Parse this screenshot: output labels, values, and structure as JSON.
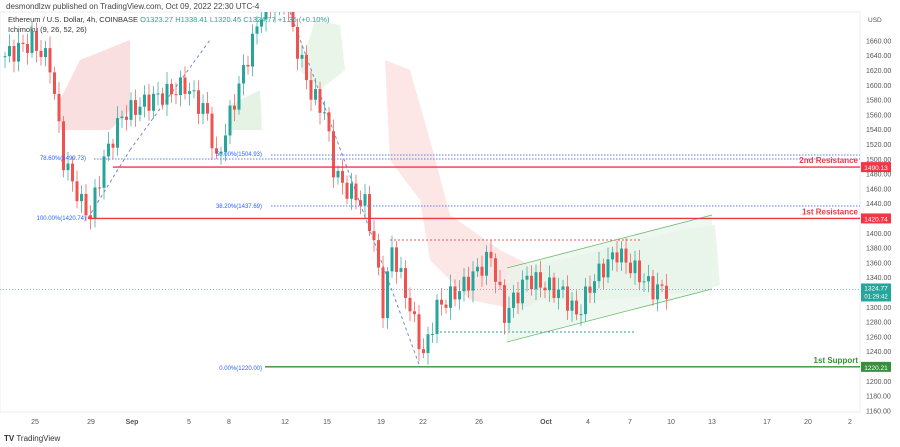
{
  "header": {
    "published": "desmondlzw published on TradingView.com, Oct 09, 2022 22:30 UTC-4"
  },
  "legend": {
    "symbol": "Ethereum / U.S. Dollar, 4h, COINBASE",
    "o": "O1323.27",
    "h": "H1338.41",
    "l": "L1320.45",
    "c": "C1324.77",
    "chg": "+1.36 (+0.10%)",
    "indicator": "Ichimoku (9, 26, 52, 26)"
  },
  "footer": {
    "brand": "TradingView"
  },
  "colors": {
    "up": "#26a69a",
    "down": "#ef5350",
    "resistance": "#f23645",
    "support": "#388e3c",
    "fib": "#2962ff"
  },
  "chart_data": {
    "type": "candlestick",
    "currency": "USD",
    "ylim": [
      1150,
      1690
    ],
    "y_ticks": [
      1660,
      1640,
      1620,
      1600,
      1580,
      1560,
      1540,
      1520,
      1500,
      1480,
      1460,
      1440,
      1420,
      1400,
      1380,
      1360,
      1340,
      1320,
      1300,
      1280,
      1260,
      1240,
      1220,
      1200,
      1180,
      1160
    ],
    "x_ticks": [
      "25",
      "29",
      "Sep",
      "5",
      "8",
      "12",
      "15",
      "19",
      "22",
      "26",
      "Oct",
      "4",
      "7",
      "10",
      "13",
      "17",
      "20",
      "2"
    ],
    "price_path": [
      [
        0,
        1640
      ],
      [
        6,
        1660
      ],
      [
        10,
        1630
      ],
      [
        13,
        1500
      ],
      [
        17,
        1440
      ],
      [
        19,
        1425
      ],
      [
        22,
        1500
      ],
      [
        26,
        1560
      ],
      [
        32,
        1580
      ],
      [
        40,
        1600
      ],
      [
        45,
        1560
      ],
      [
        47,
        1495
      ],
      [
        50,
        1560
      ],
      [
        53,
        1620
      ],
      [
        57,
        1700
      ],
      [
        62,
        1720
      ],
      [
        65,
        1650
      ],
      [
        68,
        1590
      ],
      [
        71,
        1565
      ],
      [
        73,
        1490
      ],
      [
        75,
        1465
      ],
      [
        80,
        1440
      ],
      [
        82,
        1390
      ],
      [
        84,
        1300
      ],
      [
        86,
        1380
      ],
      [
        90,
        1300
      ],
      [
        93,
        1235
      ],
      [
        96,
        1300
      ],
      [
        102,
        1330
      ],
      [
        108,
        1370
      ],
      [
        111,
        1290
      ],
      [
        116,
        1340
      ],
      [
        124,
        1320
      ],
      [
        127,
        1290
      ],
      [
        131,
        1340
      ],
      [
        136,
        1375
      ],
      [
        140,
        1350
      ],
      [
        144,
        1325
      ],
      [
        147,
        1325
      ]
    ],
    "levels": [
      {
        "label": "2nd Resistance",
        "price": "1490.13",
        "value": 1490.13
      },
      {
        "label": "1st Resistance",
        "price": "1420.74",
        "value": 1420.74
      },
      {
        "label": "1st Support",
        "price": "1220.21",
        "value": 1220.21
      }
    ],
    "fib_labels": [
      {
        "text": "78.60%(1499.73)",
        "value": 1499.73
      },
      {
        "text": "50.00%(1504.93)",
        "value": 1504.93
      },
      {
        "text": "38.20%(1437.69)",
        "value": 1437.69
      },
      {
        "text": "100.00%(1420.74)",
        "value": 1420.74
      },
      {
        "text": "0.00%(1220.00)",
        "value": 1220.0
      }
    ],
    "last_price": {
      "value": "1324.77",
      "countdown": "01:29:42"
    }
  }
}
